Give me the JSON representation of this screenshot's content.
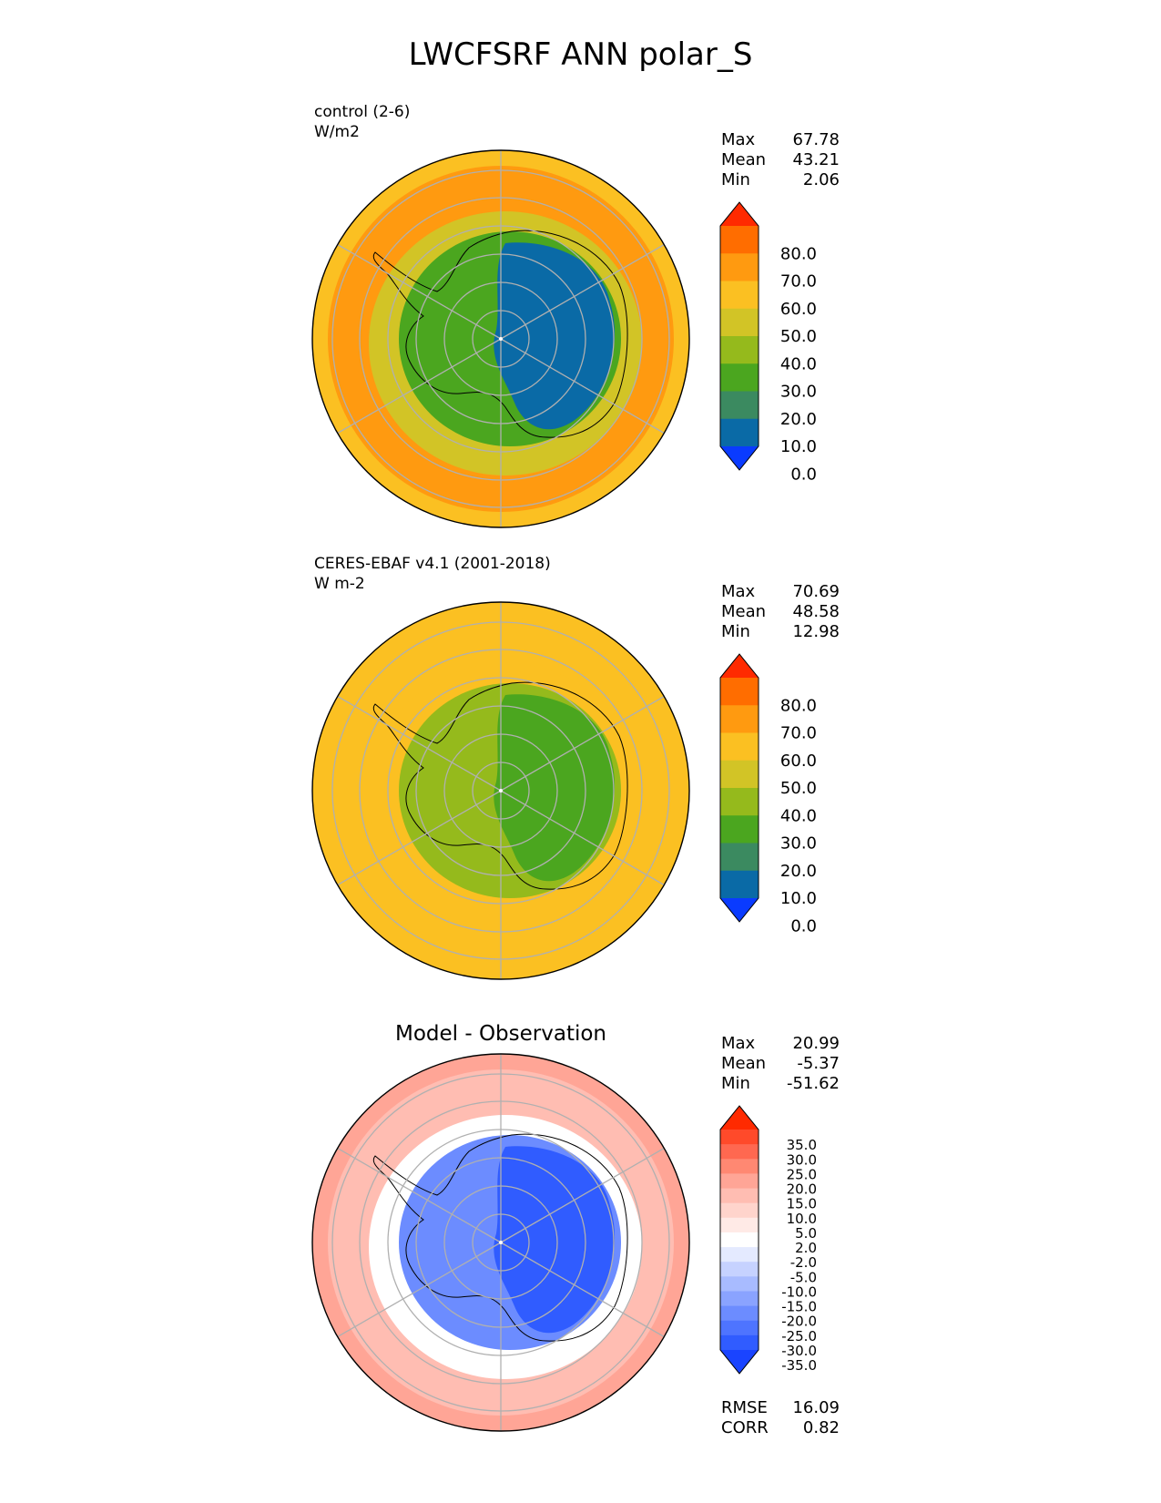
{
  "title": "LWCFSRF ANN polar_S",
  "panels": [
    {
      "label_line1": "control (2-6)",
      "label_line2": "W/m2",
      "stats": [
        {
          "name": "Max",
          "value": "67.78"
        },
        {
          "name": "Mean",
          "value": "43.21"
        },
        {
          "name": "Min",
          "value": "2.06"
        }
      ],
      "colorbar": {
        "ticks": [
          "80.0",
          "70.0",
          "60.0",
          "50.0",
          "40.0",
          "30.0",
          "20.0",
          "10.0",
          "0.0"
        ],
        "colors": [
          "#ff2a00",
          "#ff6d00",
          "#ff9a10",
          "#fbc022",
          "#d2c426",
          "#95ba1c",
          "#4ba61f",
          "#3b8a60",
          "#0a6aa6",
          "#0a3bff"
        ]
      },
      "map": {
        "center_color": "#0a6aa6",
        "inner_color": "#4ba61f",
        "ring_color": "#d2c426",
        "outer_color": "#ff9a10",
        "edge_color": "#fbc022"
      }
    },
    {
      "label_line1": "CERES-EBAF v4.1 (2001-2018)",
      "label_line2": "W m-2",
      "stats": [
        {
          "name": "Max",
          "value": "70.69"
        },
        {
          "name": "Mean",
          "value": "48.58"
        },
        {
          "name": "Min",
          "value": "12.98"
        }
      ],
      "colorbar": {
        "ticks": [
          "80.0",
          "70.0",
          "60.0",
          "50.0",
          "40.0",
          "30.0",
          "20.0",
          "10.0",
          "0.0"
        ],
        "colors": [
          "#ff2a00",
          "#ff6d00",
          "#ff9a10",
          "#fbc022",
          "#d2c426",
          "#95ba1c",
          "#4ba61f",
          "#3b8a60",
          "#0a6aa6",
          "#0a3bff"
        ]
      },
      "map": {
        "center_color": "#4ba61f",
        "inner_color": "#95ba1c",
        "ring_color": "#fbc022",
        "outer_color": "#fbc022",
        "edge_color": "#fbc022"
      }
    },
    {
      "title": "Model - Observation",
      "stats": [
        {
          "name": "Max",
          "value": "20.99"
        },
        {
          "name": "Mean",
          "value": "-5.37"
        },
        {
          "name": "Min",
          "value": "-51.62"
        }
      ],
      "colorbar": {
        "ticks": [
          "35.0",
          "30.0",
          "25.0",
          "20.0",
          "15.0",
          "10.0",
          "5.0",
          "2.0",
          "-2.0",
          "-5.0",
          "-10.0",
          "-15.0",
          "-20.0",
          "-25.0",
          "-30.0",
          "-35.0"
        ],
        "colors": [
          "#ff2a00",
          "#ff4a2a",
          "#ff6850",
          "#ff8872",
          "#ffa596",
          "#ffbdb2",
          "#ffd4cc",
          "#ffeae6",
          "#ffffff",
          "#e4eaff",
          "#c6d2ff",
          "#a8bbff",
          "#8aa3ff",
          "#6c8cff",
          "#4e74ff",
          "#305cff",
          "#1a44ff"
        ]
      },
      "map": {
        "center_color": "#305cff",
        "inner_color": "#6c8cff",
        "ring_color": "#ffffff",
        "outer_color": "#ffbdb2",
        "edge_color": "#ffa596"
      },
      "footer": [
        {
          "name": "RMSE",
          "value": "16.09"
        },
        {
          "name": "CORR",
          "value": "0.82"
        }
      ]
    }
  ]
}
